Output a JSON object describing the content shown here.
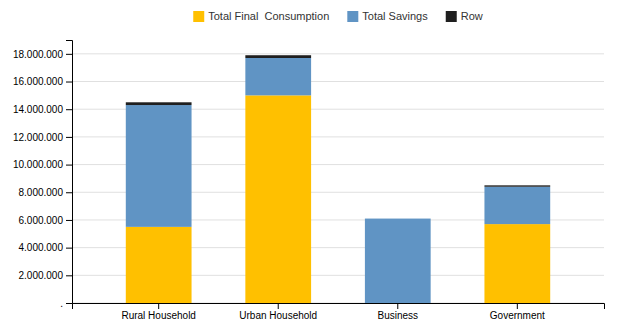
{
  "chart_data": {
    "type": "bar",
    "stacked": true,
    "categories": [
      "Rural Household",
      "Urban Household",
      "Business",
      "Government"
    ],
    "series": [
      {
        "name": "Total Final  Consumption",
        "color": "#FFC000",
        "values": [
          5500000,
          15000000,
          0,
          5700000
        ]
      },
      {
        "name": "Total Savings",
        "color": "#6094C4",
        "values": [
          8800000,
          2700000,
          6100000,
          2700000
        ]
      },
      {
        "name": "Row",
        "color": "#1F1F1F",
        "values": [
          200000,
          200000,
          0,
          100000
        ]
      }
    ],
    "ylim": [
      0,
      19000000
    ],
    "yticks": [
      {
        "value": 0,
        "label": "."
      },
      {
        "value": 2000000,
        "label": "2.000.000"
      },
      {
        "value": 4000000,
        "label": "4.000.000"
      },
      {
        "value": 6000000,
        "label": "6.000.000"
      },
      {
        "value": 8000000,
        "label": "8.000.000"
      },
      {
        "value": 10000000,
        "label": "10.000.000"
      },
      {
        "value": 12000000,
        "label": "12.000.000"
      },
      {
        "value": 14000000,
        "label": "14.000.000"
      },
      {
        "value": 16000000,
        "label": "16.000.000"
      },
      {
        "value": 18000000,
        "label": "18.000.000"
      }
    ],
    "grid": true,
    "legend": "top"
  }
}
